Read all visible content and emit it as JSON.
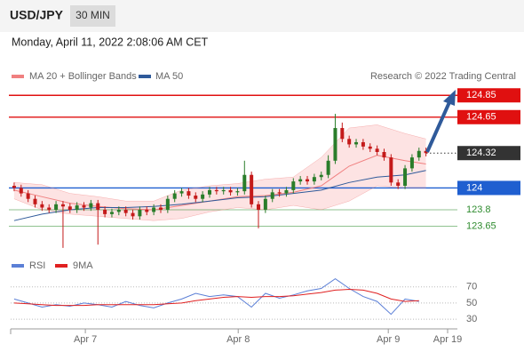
{
  "header": {
    "pair": "USD/JPY",
    "timeframe": "30 MIN",
    "datetime": "Monday, April 11, 2022 2:08:06 AM CET"
  },
  "chart_data": [
    {
      "type": "candlestick",
      "credit": "Research © 2022 Trading Central",
      "xlim": [
        -0.5,
        63.5
      ],
      "ylim": [
        123.4,
        124.95
      ],
      "xticks": [
        {
          "value": 10.2,
          "label": "Apr 7"
        },
        {
          "value": 32.1,
          "label": "Apr 8"
        },
        {
          "value": 53.6,
          "label": "Apr 9"
        },
        {
          "value": 62.1,
          "label": "Apr 19"
        }
      ],
      "up_color": "#2a7d2a",
      "down_color": "#c41a1a",
      "open": [
        124.02,
        124.0,
        123.95,
        123.9,
        123.85,
        123.82,
        123.8,
        123.85,
        123.83,
        123.8,
        123.84,
        123.82,
        123.86,
        123.8,
        123.76,
        123.78,
        123.8,
        123.77,
        123.74,
        123.8,
        123.78,
        123.82,
        123.8,
        123.9,
        123.95,
        123.97,
        123.93,
        123.9,
        123.94,
        123.98,
        123.97,
        123.98,
        123.96,
        123.97,
        124.12,
        123.85,
        123.8,
        123.9,
        123.96,
        123.95,
        123.98,
        124.06,
        124.08,
        124.06,
        124.1,
        124.12,
        124.25,
        124.55,
        124.45,
        124.4,
        124.42,
        124.38,
        124.36,
        124.33,
        124.28,
        124.05,
        124.02,
        124.18,
        124.28,
        124.34
      ],
      "high": [
        124.05,
        124.03,
        123.98,
        123.93,
        123.88,
        123.85,
        123.88,
        123.88,
        123.86,
        123.87,
        123.87,
        123.89,
        123.89,
        123.83,
        123.81,
        123.83,
        123.83,
        123.8,
        123.83,
        123.83,
        123.85,
        123.85,
        123.93,
        123.98,
        124.0,
        124.0,
        123.96,
        123.97,
        124.01,
        124.01,
        124.01,
        124.01,
        124.0,
        124.25,
        124.15,
        123.88,
        123.93,
        123.99,
        123.99,
        124.01,
        124.09,
        124.11,
        124.11,
        124.13,
        124.15,
        124.3,
        124.68,
        124.6,
        124.48,
        124.45,
        124.45,
        124.41,
        124.39,
        124.36,
        124.31,
        124.08,
        124.21,
        124.31,
        124.37,
        124.37
      ],
      "low": [
        123.97,
        123.92,
        123.87,
        123.82,
        123.79,
        123.77,
        123.77,
        123.45,
        123.77,
        123.77,
        123.79,
        123.79,
        123.48,
        123.73,
        123.73,
        123.75,
        123.74,
        123.71,
        123.71,
        123.75,
        123.75,
        123.77,
        123.77,
        123.87,
        123.92,
        123.9,
        123.87,
        123.87,
        123.91,
        123.94,
        123.94,
        123.93,
        123.93,
        123.94,
        123.82,
        123.63,
        123.77,
        123.87,
        123.92,
        123.92,
        123.95,
        124.03,
        124.03,
        124.03,
        124.07,
        124.09,
        124.22,
        124.42,
        124.37,
        124.37,
        124.35,
        124.33,
        124.3,
        124.25,
        124.02,
        123.99,
        123.99,
        124.15,
        124.25,
        124.29
      ],
      "close": [
        124.0,
        123.95,
        123.9,
        123.85,
        123.82,
        123.8,
        123.85,
        123.83,
        123.8,
        123.84,
        123.82,
        123.86,
        123.8,
        123.76,
        123.78,
        123.8,
        123.77,
        123.74,
        123.8,
        123.78,
        123.82,
        123.8,
        123.9,
        123.95,
        123.97,
        123.93,
        123.9,
        123.94,
        123.98,
        123.97,
        123.98,
        123.96,
        123.97,
        124.12,
        123.85,
        123.8,
        123.9,
        123.96,
        123.95,
        123.98,
        124.06,
        124.08,
        124.06,
        124.1,
        124.12,
        124.25,
        124.55,
        124.45,
        124.4,
        124.42,
        124.38,
        124.36,
        124.33,
        124.28,
        124.05,
        124.02,
        124.18,
        124.28,
        124.34,
        124.32
      ],
      "ma20": {
        "name": "MA 20 + Bollinger Bands",
        "color": "#f08080",
        "band_color": "#fde3e3",
        "x": [
          0,
          4,
          8,
          12,
          16,
          20,
          24,
          28,
          32,
          36,
          40,
          44,
          48,
          52,
          56,
          59
        ],
        "values": [
          123.98,
          123.92,
          123.86,
          123.83,
          123.81,
          123.8,
          123.84,
          123.88,
          123.92,
          123.93,
          123.96,
          124.02,
          124.2,
          124.3,
          124.25,
          124.22
        ],
        "upper": [
          124.05,
          124.03,
          123.95,
          123.92,
          123.88,
          123.88,
          123.98,
          124.02,
          124.04,
          124.08,
          124.1,
          124.28,
          124.55,
          124.58,
          124.5,
          124.45
        ],
        "lower": [
          123.9,
          123.8,
          123.76,
          123.74,
          123.72,
          123.7,
          123.72,
          123.78,
          123.82,
          123.8,
          123.84,
          123.8,
          123.88,
          124.02,
          124.0,
          124.0
        ]
      },
      "ma50": {
        "name": "MA 50",
        "color": "#2f5a9a",
        "x": [
          0,
          4,
          8,
          12,
          16,
          20,
          24,
          28,
          32,
          36,
          40,
          44,
          48,
          52,
          56,
          59
        ],
        "values": [
          123.7,
          123.76,
          123.8,
          123.82,
          123.82,
          123.83,
          123.85,
          123.88,
          123.91,
          123.92,
          123.95,
          123.98,
          124.05,
          124.1,
          124.12,
          124.16
        ]
      },
      "levels": [
        {
          "value": 124.85,
          "color": "#e01010",
          "style": "box"
        },
        {
          "value": 124.65,
          "color": "#e01010",
          "style": "box"
        },
        {
          "value": 124.32,
          "color": "#333333",
          "style": "dotted"
        },
        {
          "value": 124.0,
          "color": "#1f5fd0",
          "style": "box"
        },
        {
          "value": 123.8,
          "color": "#2e8b2e",
          "style": "text"
        },
        {
          "value": 123.65,
          "color": "#2e8b2e",
          "style": "text"
        }
      ]
    },
    {
      "type": "line",
      "ylim": [
        18,
        84
      ],
      "yticks": [
        30,
        50,
        70
      ],
      "xlim": [
        -0.5,
        63.5
      ],
      "x": [
        0,
        2,
        4,
        6,
        8,
        10,
        12,
        14,
        16,
        18,
        20,
        22,
        24,
        26,
        28,
        30,
        32,
        34,
        36,
        38,
        40,
        42,
        44,
        46,
        48,
        50,
        52,
        54,
        56,
        58
      ],
      "series": [
        {
          "name": "RSI",
          "color": "#5b7fd6",
          "values": [
            55,
            50,
            45,
            48,
            46,
            50,
            48,
            45,
            52,
            47,
            44,
            50,
            55,
            62,
            58,
            60,
            58,
            45,
            62,
            56,
            60,
            65,
            68,
            80,
            68,
            58,
            52,
            36,
            55,
            52
          ]
        },
        {
          "name": "9MA",
          "color": "#e02020",
          "values": [
            50,
            49,
            48,
            47,
            47,
            47,
            48,
            48,
            48,
            48,
            48,
            49,
            50,
            53,
            55,
            57,
            58,
            57,
            58,
            58,
            59,
            61,
            63,
            66,
            67,
            66,
            62,
            55,
            52,
            53
          ]
        }
      ]
    }
  ]
}
